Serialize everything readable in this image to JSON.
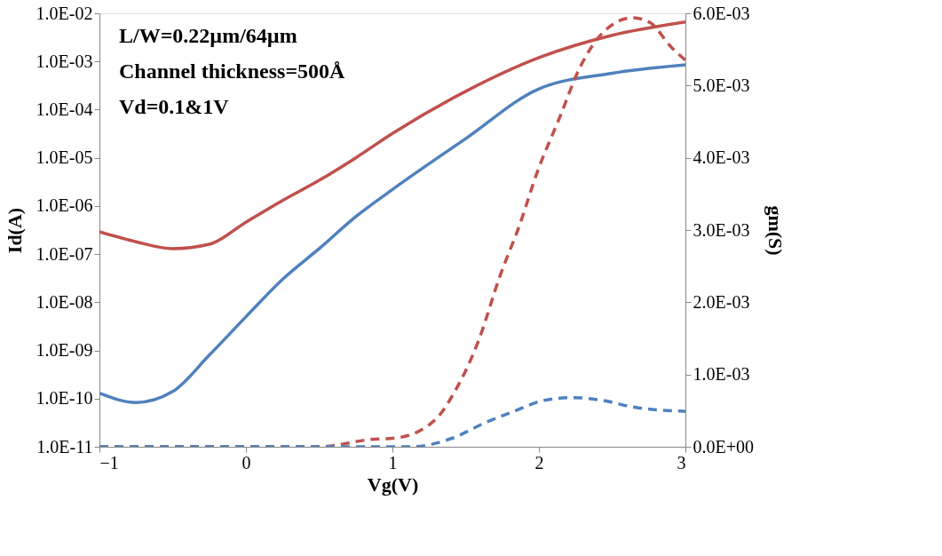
{
  "chart_data": {
    "type": "line",
    "xlabel": "Vg(V)",
    "ylabel": "Id(A)",
    "y2label": "gm(S)",
    "annotations": [
      "L/W=0.22µm/64µm",
      "Channel thickness=500Å",
      "Vd=0.1&1V"
    ],
    "xlim": [
      -1,
      3
    ],
    "xticks": [
      -1,
      0,
      1,
      2,
      3
    ],
    "ylim": [
      1e-11,
      0.01
    ],
    "log": "y",
    "yticks": [
      {
        "value": 1e-11,
        "label": "1.0E-11"
      },
      {
        "value": 1e-10,
        "label": "1.0E-10"
      },
      {
        "value": 1e-09,
        "label": "1.0E-09"
      },
      {
        "value": 1e-08,
        "label": "1.0E-08"
      },
      {
        "value": 1e-07,
        "label": "1.0E-07"
      },
      {
        "value": 1e-06,
        "label": "1.0E-06"
      },
      {
        "value": 1e-05,
        "label": "1.0E-05"
      },
      {
        "value": 0.0001,
        "label": "1.0E-04"
      },
      {
        "value": 0.001,
        "label": "1.0E-03"
      },
      {
        "value": 0.01,
        "label": "1.0E-02"
      }
    ],
    "y2lim": [
      0,
      0.006
    ],
    "y2ticks": [
      {
        "value": 0,
        "label": "0.0E+00"
      },
      {
        "value": 0.001,
        "label": "1.0E-03"
      },
      {
        "value": 0.002,
        "label": "2.0E-03"
      },
      {
        "value": 0.003,
        "label": "3.0E-03"
      },
      {
        "value": 0.004,
        "label": "4.0E-03"
      },
      {
        "value": 0.005,
        "label": "5.0E-03"
      },
      {
        "value": 0.006,
        "label": "6.0E-03"
      }
    ],
    "grid": false,
    "marker": "none",
    "series": [
      {
        "color": "#c0504d",
        "line_style": "solid",
        "x": [
          -1,
          -0.75,
          -0.5,
          -0.25,
          0,
          0.25,
          0.5,
          0.75,
          1,
          1.5,
          2,
          2.5,
          3
        ],
        "values": [
          2.9e-07,
          1.8e-07,
          1.3e-07,
          1.6e-07,
          4.6e-07,
          1.3e-06,
          3.4e-06,
          1e-05,
          3.2e-05,
          0.00024,
          0.0012,
          0.0035,
          0.0066
        ]
      },
      {
        "color": "#4f81bd",
        "line_style": "solid",
        "x": [
          -1,
          -0.75,
          -0.5,
          -0.25,
          0,
          0.25,
          0.5,
          0.75,
          1,
          1.5,
          2,
          2.5,
          3
        ],
        "values": [
          1.3e-10,
          8.3e-11,
          1.4e-10,
          8e-10,
          5e-09,
          3e-08,
          1.3e-07,
          6e-07,
          2.2e-06,
          2.5e-05,
          0.00027,
          0.00057,
          0.00085
        ]
      },
      {
        "color": "#c0504d",
        "line_style": "dashed",
        "axis": "y2",
        "x": [
          -1,
          0,
          0.5,
          0.85,
          1.02,
          1.29,
          1.43,
          1.59,
          1.73,
          1.87,
          1.99,
          2.14,
          2.28,
          2.44,
          2.64,
          2.76,
          2.9,
          3
        ],
        "values": [
          0,
          0,
          0,
          0.0001,
          0.00012,
          0.00037,
          0.00078,
          0.00148,
          0.00234,
          0.00308,
          0.00381,
          0.00455,
          0.00525,
          0.00574,
          0.00594,
          0.00587,
          0.00554,
          0.00535
        ]
      },
      {
        "color": "#4f81bd",
        "line_style": "dashed",
        "axis": "y2",
        "x": [
          -1,
          0,
          0.8,
          1.13,
          1.41,
          1.63,
          1.83,
          2.03,
          2.23,
          2.44,
          2.64,
          3
        ],
        "values": [
          0,
          0,
          0,
          0,
          0.00012,
          0.00033,
          0.00049,
          0.00064,
          0.00068,
          0.00064,
          0.00055,
          0.00049
        ]
      }
    ]
  }
}
